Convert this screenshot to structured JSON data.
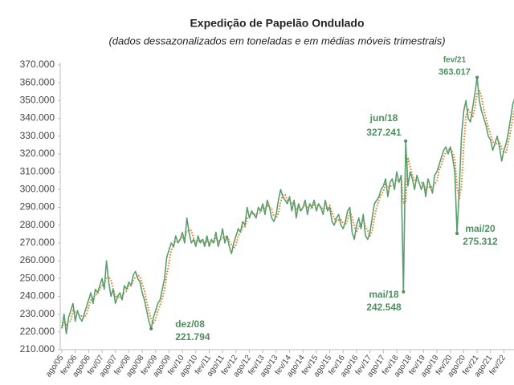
{
  "chart_data": {
    "type": "line",
    "title": "Expedição de Papelão Ondulado",
    "subtitle": "(dados dessazonalizados em toneladas e em médias móveis trimestrais)",
    "categories": [
      "ago/05",
      null,
      null,
      null,
      null,
      null,
      "fev/06",
      null,
      null,
      null,
      null,
      null,
      "ago/06",
      null,
      null,
      null,
      null,
      null,
      "fev/07",
      null,
      null,
      null,
      null,
      null,
      "ago/07",
      null,
      null,
      null,
      null,
      null,
      "fev/08",
      null,
      null,
      null,
      null,
      null,
      "ago/08",
      null,
      null,
      null,
      null,
      null,
      "fev/09",
      null,
      null,
      null,
      null,
      null,
      "ago/09",
      null,
      null,
      null,
      null,
      null,
      "fev/10",
      null,
      null,
      null,
      null,
      null,
      "ago/10",
      null,
      null,
      null,
      null,
      null,
      "fev/11",
      null,
      null,
      null,
      null,
      null,
      "ago/11",
      null,
      null,
      null,
      null,
      null,
      "fev/12",
      null,
      null,
      null,
      null,
      null,
      "ago/12",
      null,
      null,
      null,
      null,
      null,
      "fev/13",
      null,
      null,
      null,
      null,
      null,
      "ago/13",
      null,
      null,
      null,
      null,
      null,
      "fev/14",
      null,
      null,
      null,
      null,
      null,
      "ago/14",
      null,
      null,
      null,
      null,
      null,
      "fev/15",
      null,
      null,
      null,
      null,
      null,
      "ago/15",
      null,
      null,
      null,
      null,
      null,
      "fev/16",
      null,
      null,
      null,
      null,
      null,
      "ago/16",
      null,
      null,
      null,
      null,
      null,
      "fev/17",
      null,
      null,
      null,
      null,
      null,
      "ago/17",
      null,
      null,
      null,
      null,
      null,
      "fev/18",
      null,
      null,
      null,
      null,
      null,
      "ago/18",
      null,
      null,
      null,
      null,
      null,
      "fev/19",
      null,
      null,
      null,
      null,
      null,
      "ago/19",
      null,
      null,
      null,
      null,
      null,
      "fev/20",
      null,
      null,
      null,
      null,
      null,
      "ago/20",
      null,
      null,
      null,
      null,
      null,
      "fev/21",
      null,
      null,
      null,
      null,
      null,
      "ago/21",
      null,
      null,
      null,
      null,
      null,
      "fev/22",
      null,
      null,
      null,
      null,
      null,
      null
    ],
    "series": [
      {
        "color": "#5a9e6f",
        "dash": "solid",
        "values": [
          222000,
          230000,
          219000,
          228000,
          232000,
          236000,
          226000,
          232000,
          228000,
          226000,
          230000,
          234000,
          238000,
          242000,
          236000,
          244000,
          242000,
          246000,
          250000,
          244000,
          260000,
          248000,
          240000,
          244000,
          236000,
          240000,
          242000,
          238000,
          246000,
          244000,
          248000,
          246000,
          252000,
          254000,
          250000,
          248000,
          242000,
          238000,
          232000,
          226000,
          221794,
          228000,
          232000,
          236000,
          238000,
          244000,
          250000,
          262000,
          266000,
          270000,
          268000,
          274000,
          270000,
          272000,
          276000,
          270000,
          284000,
          276000,
          270000,
          272000,
          268000,
          274000,
          270000,
          272000,
          268000,
          274000,
          268000,
          272000,
          270000,
          276000,
          268000,
          272000,
          278000,
          270000,
          274000,
          268000,
          264000,
          270000,
          274000,
          278000,
          276000,
          282000,
          280000,
          290000,
          284000,
          288000,
          286000,
          284000,
          290000,
          288000,
          292000,
          286000,
          294000,
          290000,
          284000,
          282000,
          286000,
          294000,
          300000,
          296000,
          294000,
          292000,
          296000,
          288000,
          294000,
          284000,
          292000,
          288000,
          290000,
          294000,
          286000,
          292000,
          290000,
          294000,
          288000,
          292000,
          290000,
          286000,
          294000,
          288000,
          290000,
          282000,
          280000,
          284000,
          286000,
          280000,
          278000,
          282000,
          288000,
          290000,
          276000,
          272000,
          280000,
          284000,
          278000,
          286000,
          274000,
          272000,
          276000,
          284000,
          292000,
          294000,
          296000,
          300000,
          302000,
          306000,
          296000,
          304000,
          306000,
          300000,
          310000,
          304000,
          308000,
          242548,
          327241,
          302000,
          310000,
          306000,
          300000,
          308000,
          304000,
          300000,
          304000,
          296000,
          306000,
          302000,
          298000,
          308000,
          310000,
          314000,
          318000,
          322000,
          324000,
          320000,
          324000,
          318000,
          310000,
          275312,
          300000,
          330000,
          344000,
          350000,
          340000,
          338000,
          346000,
          354000,
          363017,
          350000,
          344000,
          340000,
          336000,
          330000,
          328000,
          322000,
          326000,
          330000,
          324000,
          316000,
          322000,
          326000,
          332000,
          340000,
          348000,
          352000,
          354000
        ]
      },
      {
        "color": "#e07b22",
        "dash": "dotted",
        "values": [
          222000,
          226000,
          224000,
          226000,
          226000,
          232000,
          231000,
          231000,
          229000,
          229000,
          228000,
          230000,
          234000,
          238000,
          239000,
          241000,
          241000,
          244000,
          246000,
          247000,
          251000,
          251000,
          249000,
          244000,
          240000,
          240000,
          239000,
          240000,
          242000,
          243000,
          246000,
          246000,
          249000,
          251000,
          252000,
          251000,
          247000,
          243000,
          237000,
          232000,
          227000,
          225000,
          227000,
          232000,
          235000,
          239000,
          244000,
          252000,
          259000,
          266000,
          268000,
          271000,
          271000,
          272000,
          273000,
          273000,
          277000,
          277000,
          277000,
          273000,
          270000,
          271000,
          271000,
          272000,
          270000,
          271000,
          270000,
          271000,
          270000,
          273000,
          271000,
          272000,
          273000,
          273000,
          274000,
          271000,
          269000,
          267000,
          269000,
          274000,
          276000,
          279000,
          279000,
          284000,
          285000,
          287000,
          286000,
          286000,
          287000,
          287000,
          290000,
          289000,
          291000,
          290000,
          289000,
          285000,
          284000,
          287000,
          293000,
          297000,
          297000,
          294000,
          294000,
          292000,
          293000,
          289000,
          290000,
          288000,
          290000,
          291000,
          290000,
          291000,
          289000,
          292000,
          291000,
          291000,
          290000,
          289000,
          290000,
          289000,
          291000,
          287000,
          284000,
          282000,
          283000,
          283000,
          281000,
          280000,
          283000,
          287000,
          285000,
          279000,
          276000,
          279000,
          281000,
          283000,
          279000,
          277000,
          274000,
          277000,
          284000,
          290000,
          294000,
          297000,
          299000,
          303000,
          301000,
          302000,
          302000,
          303000,
          305000,
          305000,
          306000,
          292000,
          293000,
          318000,
          313000,
          308000,
          305000,
          305000,
          304000,
          304000,
          303000,
          300000,
          302000,
          301000,
          302000,
          303000,
          305000,
          311000,
          314000,
          318000,
          321000,
          322000,
          323000,
          321000,
          317000,
          301000,
          295000,
          302000,
          325000,
          341000,
          345000,
          343000,
          341000,
          346000,
          354000,
          356000,
          352000,
          345000,
          340000,
          335000,
          331000,
          327000,
          325000,
          326000,
          327000,
          323000,
          321000,
          321000,
          327000,
          333000,
          340000,
          347000,
          351000
        ]
      }
    ],
    "annotations": [
      {
        "label": "dez/08",
        "value": 221794,
        "value_label": "221.794"
      },
      {
        "label": "mai/18",
        "value": 242548,
        "value_label": "242.548"
      },
      {
        "label": "jun/18",
        "value": 327241,
        "value_label": "327.241"
      },
      {
        "label": "mai/20",
        "value": 275312,
        "value_label": "275.312"
      },
      {
        "label": "fev/21",
        "value": 363017,
        "value_label": "363.017"
      }
    ],
    "ylim": [
      210000,
      370000
    ],
    "yticks": [
      {
        "value": 210000,
        "label": "210.000"
      },
      {
        "value": 220000,
        "label": "220.000"
      },
      {
        "value": 230000,
        "label": "230.000"
      },
      {
        "value": 240000,
        "label": "240.000"
      },
      {
        "value": 250000,
        "label": "250.000"
      },
      {
        "value": 260000,
        "label": "260.000"
      },
      {
        "value": 270000,
        "label": "270.000"
      },
      {
        "value": 280000,
        "label": "280.000"
      },
      {
        "value": 290000,
        "label": "290.000"
      },
      {
        "value": 300000,
        "label": "300.000"
      },
      {
        "value": 310000,
        "label": "310.000"
      },
      {
        "value": 320000,
        "label": "320.000"
      },
      {
        "value": 330000,
        "label": "330.000"
      },
      {
        "value": 340000,
        "label": "340.000"
      },
      {
        "value": 350000,
        "label": "350.000"
      },
      {
        "value": 360000,
        "label": "360.000"
      },
      {
        "value": 370000,
        "label": "370.000"
      }
    ],
    "grid": false
  }
}
